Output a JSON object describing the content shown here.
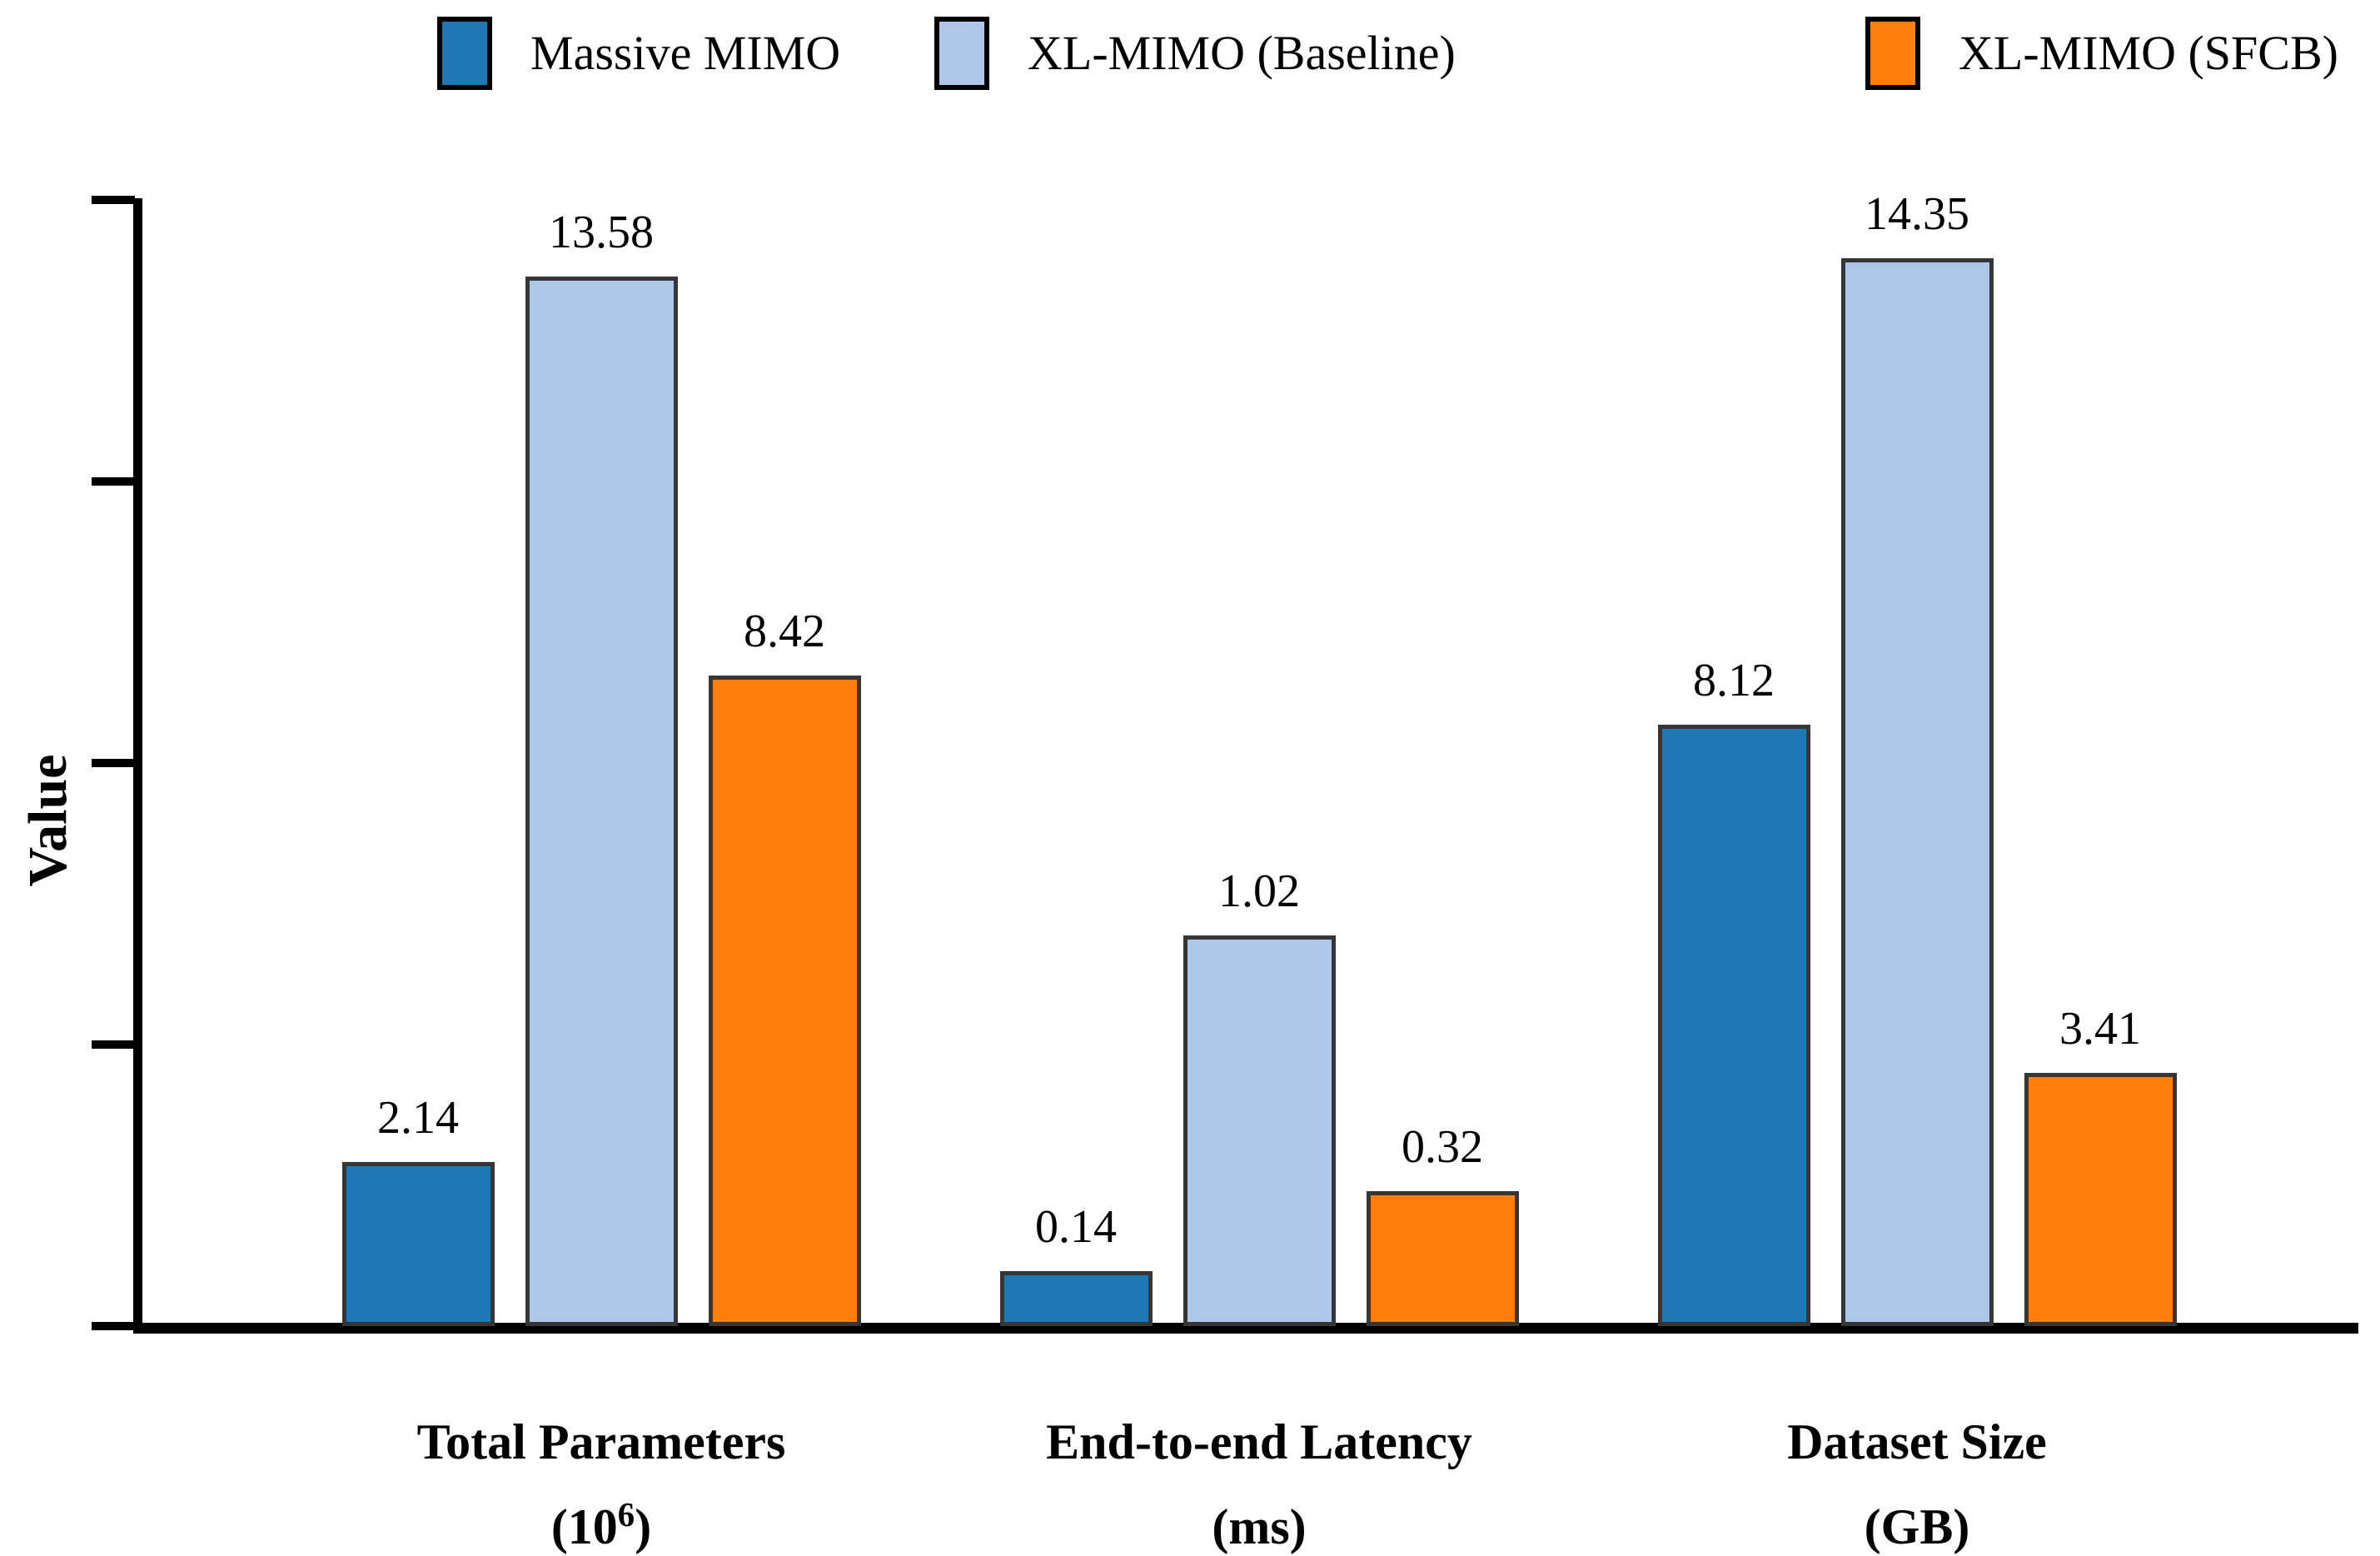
{
  "chart_data": {
    "type": "bar",
    "title": "",
    "ylabel": "Value",
    "xlabel": "",
    "legend_position": "top",
    "grid": false,
    "background_color": "#ffffff",
    "axis_color": "#000000",
    "bar_edge_color": "#363636",
    "y_axis": {
      "tick_count": 5,
      "tick_labels": [],
      "tick_labels_visible": false
    },
    "categories": [
      {
        "line1": "Total Parameters",
        "line2_pre": "(10",
        "line2_sup": "6",
        "line2_post": ")"
      },
      {
        "line1": "End-to-end Latency",
        "line2_pre": "(ms)",
        "line2_sup": "",
        "line2_post": ""
      },
      {
        "line1": "Dataset Size",
        "line2_pre": "(GB)",
        "line2_sup": "",
        "line2_post": ""
      }
    ],
    "series": [
      {
        "name": "Massive MIMO",
        "color": "#1f77b4",
        "values": [
          2.14,
          0.14,
          8.12
        ],
        "value_labels": [
          "2.14",
          "0.14",
          "8.12"
        ],
        "drawn_height_fractions": [
          0.146,
          0.049,
          0.534
        ]
      },
      {
        "name": "XL-MIMO (Baseline)",
        "color": "#aec7e8",
        "values": [
          13.58,
          1.02,
          14.35
        ],
        "value_labels": [
          "13.58",
          "1.02",
          "14.35"
        ],
        "drawn_height_fractions": [
          0.932,
          0.347,
          0.948
        ]
      },
      {
        "name": "XL-MIMO (SFCB)",
        "color": "#ff7f0e",
        "values": [
          8.42,
          0.32,
          3.41
        ],
        "value_labels": [
          "8.42",
          "0.32",
          "3.41"
        ],
        "drawn_height_fractions": [
          0.578,
          0.12,
          0.225
        ]
      }
    ]
  }
}
